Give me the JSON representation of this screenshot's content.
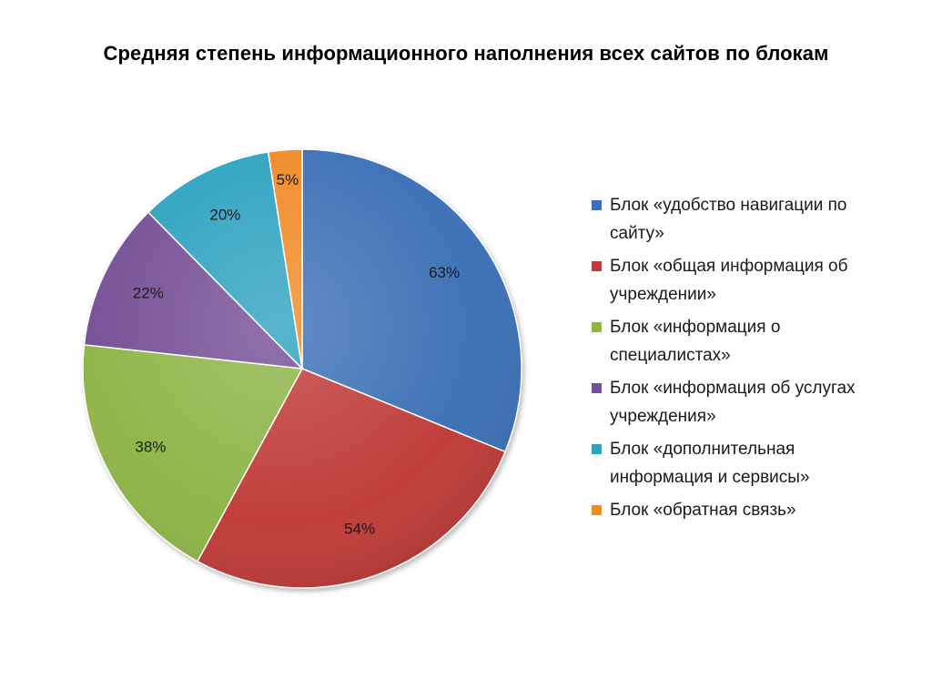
{
  "chart_data": {
    "type": "pie",
    "title": "Средняя степень информационного наполнения всех сайтов по блокам",
    "legend_position": "right",
    "slices": [
      {
        "label": "Блок «удобство навигации по сайту»",
        "value": 63,
        "value_label": "63%",
        "color": "#3b6fb6"
      },
      {
        "label": "Блок «общая информация об учреждении»",
        "value": 54,
        "value_label": "54%",
        "color": "#bf3a38"
      },
      {
        "label": "Блок «информация о специалистах»",
        "value": 38,
        "value_label": "38%",
        "color": "#8db547"
      },
      {
        "label": "Блок «информация об услугах учреждения»",
        "value": 22,
        "value_label": "22%",
        "color": "#744f96"
      },
      {
        "label": "Блок «дополнительная информация и сервисы»",
        "value": 20,
        "value_label": "20%",
        "color": "#2ea3c0"
      },
      {
        "label": "Блок «обратная связь»",
        "value": 5,
        "value_label": "5%",
        "color": "#f18a26"
      }
    ]
  }
}
